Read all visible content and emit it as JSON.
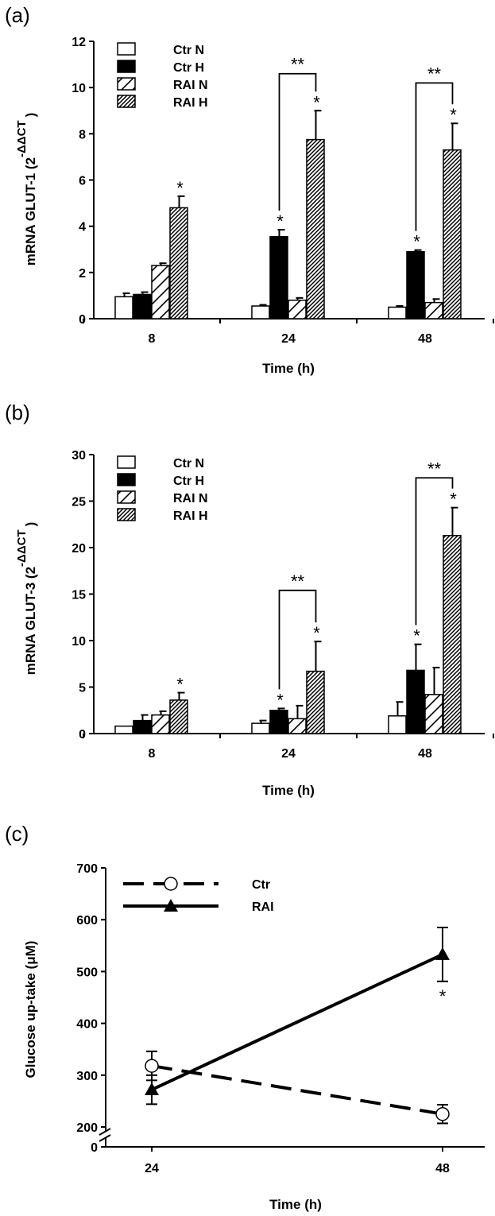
{
  "panels": {
    "a": {
      "label": "(a)",
      "ylabel_main": "mRNA GLUT-1 (2",
      "ylabel_sup": "-ΔΔCT",
      "ylabel_close": ")",
      "xlabel": "Time (h)",
      "significance_mark": "*",
      "bracket_mark": "**"
    },
    "b": {
      "label": "(b)",
      "ylabel_main": "mRNA GLUT-3 (2",
      "ylabel_sup": "-ΔΔCT",
      "ylabel_close": ")",
      "xlabel": "Time (h)",
      "significance_mark": "*",
      "bracket_mark": "**"
    },
    "c": {
      "label": "(c)",
      "ylabel": "Glucose up-take (μM)",
      "xlabel": "Time (h)",
      "significance_mark": "*"
    }
  },
  "chart_data": [
    {
      "type": "bar",
      "panel": "a",
      "categories": [
        "8",
        "24",
        "48"
      ],
      "ylim": [
        0,
        12
      ],
      "yticks": [
        0,
        2,
        4,
        6,
        8,
        10,
        12
      ],
      "legend_position": "top-left",
      "series": [
        {
          "name": "Ctr N",
          "pattern": "open",
          "values": [
            0.95,
            0.55,
            0.5
          ],
          "errors": [
            0.15,
            0.05,
            0.05
          ],
          "significant": [
            false,
            false,
            false
          ]
        },
        {
          "name": "Ctr H",
          "pattern": "solid",
          "values": [
            1.05,
            3.55,
            2.9
          ],
          "errors": [
            0.1,
            0.3,
            0.07
          ],
          "significant": [
            false,
            true,
            true
          ]
        },
        {
          "name": "RAI N",
          "pattern": "single-hatch",
          "values": [
            2.3,
            0.8,
            0.7
          ],
          "errors": [
            0.1,
            0.1,
            0.15
          ],
          "significant": [
            false,
            false,
            false
          ]
        },
        {
          "name": "RAI H",
          "pattern": "dense-hatch",
          "values": [
            4.8,
            7.75,
            7.3
          ],
          "errors": [
            0.5,
            1.25,
            1.15
          ],
          "significant": [
            true,
            true,
            true
          ]
        }
      ],
      "brackets": [
        {
          "category": "24",
          "from": "Ctr H",
          "to": "RAI H",
          "level": 10.6
        },
        {
          "category": "48",
          "from": "Ctr H",
          "to": "RAI H",
          "level": 10.2
        }
      ]
    },
    {
      "type": "bar",
      "panel": "b",
      "categories": [
        "8",
        "24",
        "48"
      ],
      "ylim": [
        0,
        30
      ],
      "yticks": [
        0,
        5,
        10,
        15,
        20,
        25,
        30
      ],
      "legend_position": "top-left",
      "series": [
        {
          "name": "Ctr N",
          "pattern": "open",
          "values": [
            0.8,
            1.1,
            1.9
          ],
          "errors": [
            0,
            0.3,
            1.5
          ],
          "significant": [
            false,
            false,
            false
          ]
        },
        {
          "name": "Ctr H",
          "pattern": "solid",
          "values": [
            1.4,
            2.5,
            6.8
          ],
          "errors": [
            0.6,
            0.2,
            2.8
          ],
          "significant": [
            false,
            true,
            true
          ]
        },
        {
          "name": "RAI N",
          "pattern": "single-hatch",
          "values": [
            2.0,
            1.6,
            4.2
          ],
          "errors": [
            0.4,
            1.4,
            2.9
          ],
          "significant": [
            false,
            false,
            false
          ]
        },
        {
          "name": "RAI H",
          "pattern": "dense-hatch",
          "values": [
            3.6,
            6.7,
            21.3
          ],
          "errors": [
            0.8,
            3.2,
            3.0
          ],
          "significant": [
            true,
            true,
            true
          ]
        }
      ],
      "brackets": [
        {
          "category": "24",
          "from": "Ctr H",
          "to": "RAI H",
          "level": 15.4
        },
        {
          "category": "48",
          "from": "Ctr H",
          "to": "RAI H",
          "level": 27.5
        }
      ]
    },
    {
      "type": "line",
      "panel": "c",
      "x": [
        "24",
        "48"
      ],
      "ylim": [
        200,
        700
      ],
      "yticks": [
        0,
        200,
        300,
        400,
        500,
        600,
        700
      ],
      "axis_break": true,
      "legend_position": "top-left",
      "series": [
        {
          "name": "Ctr",
          "style": "dashed",
          "marker": "open-circle",
          "values": [
            318,
            225
          ],
          "errors": [
            28,
            18
          ],
          "significant": [
            false,
            false
          ]
        },
        {
          "name": "RAI",
          "style": "solid",
          "marker": "filled-triangle",
          "values": [
            272,
            533
          ],
          "errors": [
            28,
            52
          ],
          "significant": [
            false,
            true
          ]
        }
      ]
    }
  ]
}
